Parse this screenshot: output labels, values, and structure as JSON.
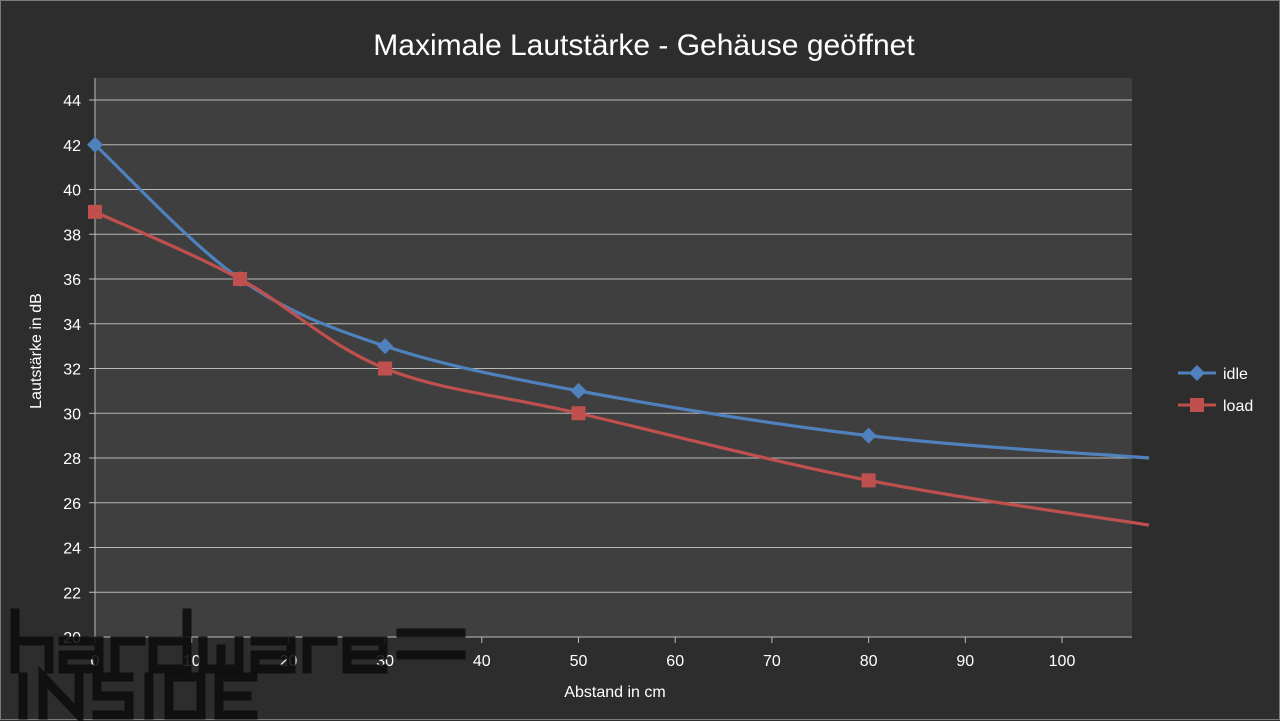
{
  "chart_data": {
    "type": "line",
    "title": "Maximale Lautstärke - Gehäuse geöffnet",
    "xlabel": "Abstand in cm",
    "ylabel": "Lautstärke in dB",
    "xlim": [
      0,
      109
    ],
    "ylim": [
      20,
      45
    ],
    "xticks": [
      0,
      10,
      20,
      30,
      40,
      50,
      60,
      70,
      80,
      90,
      100
    ],
    "yticks": [
      20,
      22,
      24,
      26,
      28,
      30,
      32,
      34,
      36,
      38,
      40,
      42,
      44
    ],
    "grid": true,
    "legend": "right",
    "series": [
      {
        "name": "idle",
        "color": "#4f81bd",
        "marker": "diamond",
        "x": [
          0,
          15,
          30,
          50,
          80
        ],
        "y": [
          42,
          36,
          33,
          31,
          29
        ],
        "trend_end": {
          "x": 109,
          "y": 28
        }
      },
      {
        "name": "load",
        "color": "#c0504d",
        "marker": "square",
        "x": [
          0,
          15,
          30,
          50,
          80
        ],
        "y": [
          39,
          36,
          32,
          30,
          27
        ],
        "trend_end": {
          "x": 109,
          "y": 25
        }
      }
    ]
  },
  "watermark": {
    "line1": "hardware",
    "line2": "INSIDE"
  }
}
